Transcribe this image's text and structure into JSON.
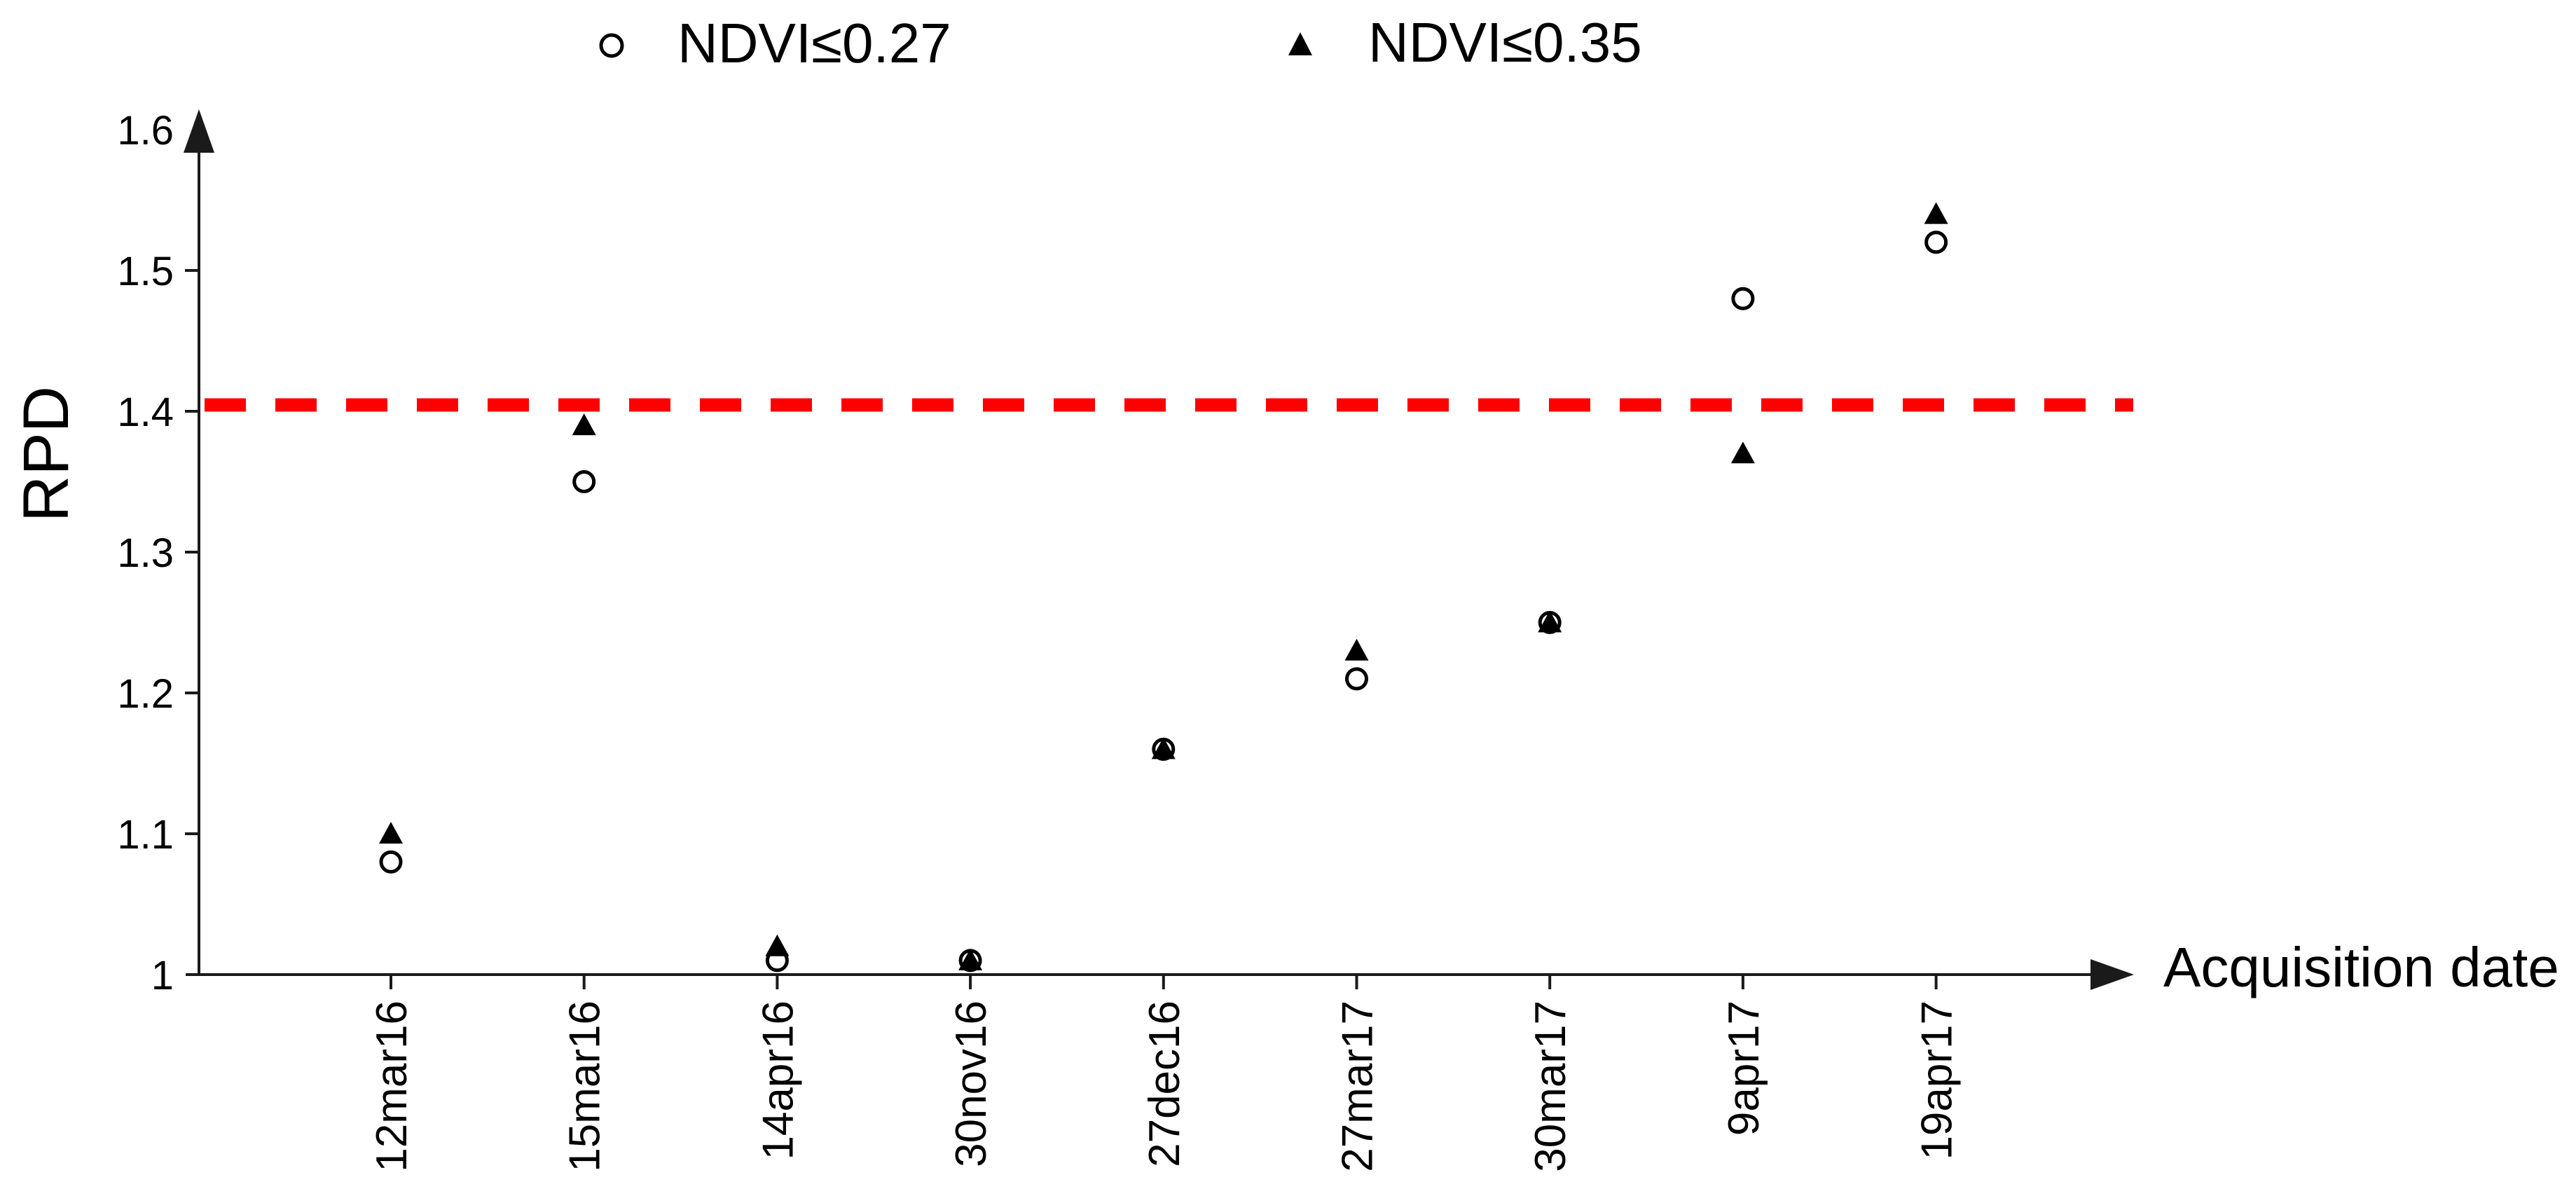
{
  "figure": {
    "legend": {
      "items": [
        {
          "label": "NDVI≤0.27",
          "marker": "open-circle-icon"
        },
        {
          "label": "NDVI≤0.35",
          "marker": "filled-triangle-icon"
        }
      ]
    },
    "y_axis_title": "RPD",
    "x_axis_title": "Acquisition date"
  },
  "chart_data": {
    "type": "scatter",
    "title": "",
    "xlabel": "Acquisition date",
    "ylabel": "RPD",
    "categories": [
      "12mar16",
      "15mar16",
      "14apr16",
      "30nov16",
      "27dec16",
      "27mar17",
      "30mar17",
      "9apr17",
      "19apr17"
    ],
    "series": [
      {
        "name": "NDVI≤0.27",
        "marker": "open-circle",
        "color": "#000000",
        "values": [
          1.08,
          1.35,
          1.01,
          1.01,
          1.16,
          1.21,
          1.25,
          1.48,
          1.52
        ]
      },
      {
        "name": "NDVI≤0.35",
        "marker": "filled-triangle",
        "color": "#000000",
        "values": [
          1.1,
          1.39,
          1.02,
          1.01,
          1.16,
          1.23,
          1.25,
          1.37,
          1.54
        ]
      }
    ],
    "threshold_line": {
      "value": 1.4,
      "style": "dashed",
      "color": "#fe0000"
    },
    "ylim": [
      1.0,
      1.6
    ],
    "y_ticks": [
      1.0,
      1.1,
      1.2,
      1.3,
      1.4,
      1.5,
      1.6
    ],
    "grid": false,
    "legend_position": "top",
    "axis_color": "#1a1a1a"
  }
}
